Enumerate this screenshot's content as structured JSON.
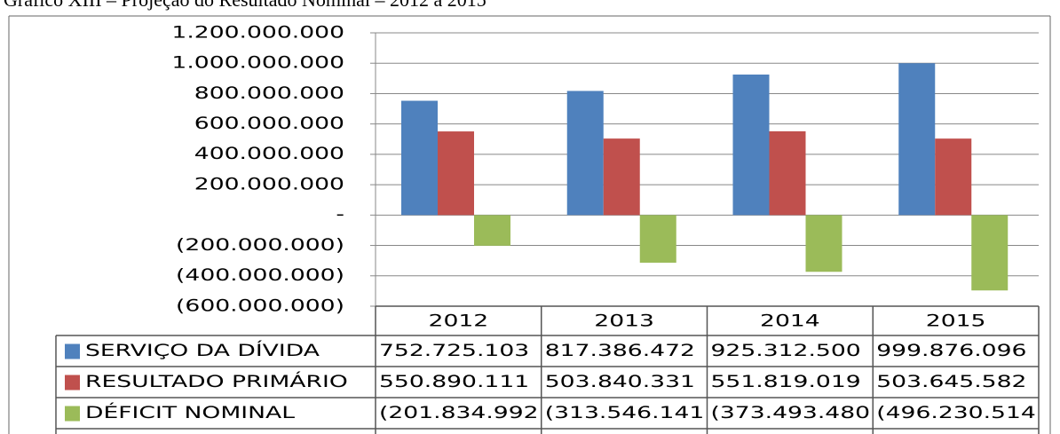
{
  "chart_data": {
    "type": "bar",
    "title": "Gráfico XIII – Projeção do Resultado Nominal – 2012 a 2015",
    "categories": [
      "2012",
      "2013",
      "2014",
      "2015"
    ],
    "series": [
      {
        "name": "SERVIÇO DA DÍVIDA",
        "color": "#4f81bd",
        "values": [
          752725103,
          817386472,
          925312500,
          999876096
        ],
        "value_labels": [
          "752.725.103",
          "817.386.472",
          "925.312.500",
          "999.876.096"
        ]
      },
      {
        "name": "RESULTADO PRIMÁRIO",
        "color": "#c0504d",
        "values": [
          550890111,
          503840331,
          551819019,
          503645582
        ],
        "value_labels": [
          "550.890.111",
          "503.840.331",
          "551.819.019",
          "503.645.582"
        ]
      },
      {
        "name": "DÉFICIT NOMINAL",
        "color": "#9bbb59",
        "values": [
          -201834992,
          -313546141,
          -373493480,
          -496230514
        ],
        "value_labels": [
          "(201.834.992",
          "(313.546.141",
          "(373.493.480",
          "(496.230.514"
        ]
      }
    ],
    "ylim": [
      -600000000,
      1200000000
    ],
    "yticks": [
      {
        "value": -600000000,
        "label": "(600.000.000)"
      },
      {
        "value": -400000000,
        "label": "(400.000.000)"
      },
      {
        "value": -200000000,
        "label": "(200.000.000)"
      },
      {
        "value": 0,
        "label": "-"
      },
      {
        "value": 200000000,
        "label": "200.000.000"
      },
      {
        "value": 400000000,
        "label": "400.000.000"
      },
      {
        "value": 600000000,
        "label": "600.000.000"
      },
      {
        "value": 800000000,
        "label": "800.000.000"
      },
      {
        "value": 1000000000,
        "label": "1.000.000.000"
      },
      {
        "value": 1200000000,
        "label": "1.200.000.000"
      }
    ],
    "grid": true
  }
}
